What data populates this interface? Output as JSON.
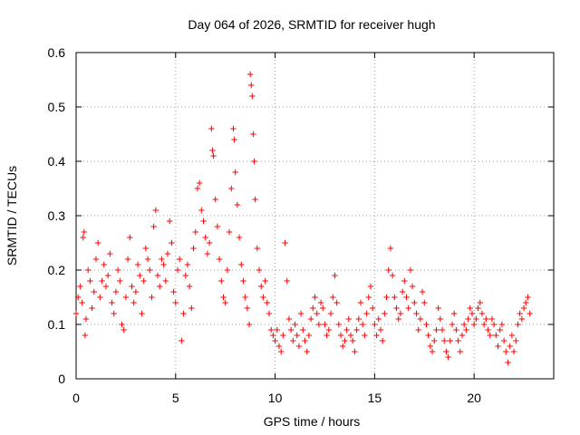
{
  "chart_data": {
    "type": "scatter",
    "title": "Day 064 of 2026, SRMTID for receiver hugh",
    "xlabel": "GPS time / hours",
    "ylabel": "SRMTID / TECUs",
    "xlim": [
      0,
      24
    ],
    "ylim": [
      0,
      0.6
    ],
    "x_ticks": [
      0,
      5,
      10,
      15,
      20
    ],
    "x_tick_labels": [
      "0",
      "5",
      "10",
      "15",
      "20"
    ],
    "y_ticks": [
      0,
      0.1,
      0.2,
      0.3,
      0.4,
      0.5,
      0.6
    ],
    "y_tick_labels": [
      "0",
      "0.1",
      "0.2",
      "0.3",
      "0.4",
      "0.5",
      "0.6"
    ],
    "grid": true,
    "marker": "plus",
    "series": [
      {
        "name": "SRMTID",
        "color": "#ff0000",
        "points": [
          [
            0.0,
            0.12
          ],
          [
            0.1,
            0.15
          ],
          [
            0.2,
            0.17
          ],
          [
            0.3,
            0.14
          ],
          [
            0.35,
            0.26
          ],
          [
            0.4,
            0.27
          ],
          [
            0.45,
            0.08
          ],
          [
            0.5,
            0.11
          ],
          [
            0.6,
            0.2
          ],
          [
            0.7,
            0.18
          ],
          [
            0.8,
            0.13
          ],
          [
            0.9,
            0.16
          ],
          [
            1.0,
            0.22
          ],
          [
            1.1,
            0.25
          ],
          [
            1.2,
            0.15
          ],
          [
            1.3,
            0.18
          ],
          [
            1.4,
            0.21
          ],
          [
            1.5,
            0.17
          ],
          [
            1.6,
            0.19
          ],
          [
            1.7,
            0.23
          ],
          [
            1.8,
            0.14
          ],
          [
            1.9,
            0.12
          ],
          [
            2.0,
            0.16
          ],
          [
            2.1,
            0.2
          ],
          [
            2.2,
            0.18
          ],
          [
            2.3,
            0.1
          ],
          [
            2.4,
            0.09
          ],
          [
            2.5,
            0.15
          ],
          [
            2.6,
            0.22
          ],
          [
            2.7,
            0.26
          ],
          [
            2.8,
            0.17
          ],
          [
            2.9,
            0.14
          ],
          [
            3.0,
            0.16
          ],
          [
            3.1,
            0.21
          ],
          [
            3.2,
            0.19
          ],
          [
            3.3,
            0.12
          ],
          [
            3.4,
            0.18
          ],
          [
            3.5,
            0.24
          ],
          [
            3.6,
            0.22
          ],
          [
            3.7,
            0.2
          ],
          [
            3.8,
            0.15
          ],
          [
            3.9,
            0.28
          ],
          [
            4.0,
            0.31
          ],
          [
            4.1,
            0.19
          ],
          [
            4.2,
            0.17
          ],
          [
            4.3,
            0.22
          ],
          [
            4.4,
            0.21
          ],
          [
            4.5,
            0.18
          ],
          [
            4.6,
            0.23
          ],
          [
            4.7,
            0.29
          ],
          [
            4.8,
            0.25
          ],
          [
            4.9,
            0.16
          ],
          [
            5.0,
            0.14
          ],
          [
            5.1,
            0.2
          ],
          [
            5.2,
            0.22
          ],
          [
            5.3,
            0.07
          ],
          [
            5.4,
            0.12
          ],
          [
            5.5,
            0.19
          ],
          [
            5.6,
            0.21
          ],
          [
            5.7,
            0.17
          ],
          [
            5.8,
            0.13
          ],
          [
            5.9,
            0.24
          ],
          [
            6.0,
            0.27
          ],
          [
            6.1,
            0.35
          ],
          [
            6.2,
            0.36
          ],
          [
            6.3,
            0.31
          ],
          [
            6.4,
            0.29
          ],
          [
            6.5,
            0.26
          ],
          [
            6.6,
            0.23
          ],
          [
            6.7,
            0.25
          ],
          [
            6.8,
            0.46
          ],
          [
            6.85,
            0.42
          ],
          [
            6.9,
            0.41
          ],
          [
            7.0,
            0.33
          ],
          [
            7.1,
            0.28
          ],
          [
            7.2,
            0.22
          ],
          [
            7.3,
            0.18
          ],
          [
            7.4,
            0.15
          ],
          [
            7.5,
            0.14
          ],
          [
            7.6,
            0.2
          ],
          [
            7.7,
            0.27
          ],
          [
            7.8,
            0.35
          ],
          [
            7.9,
            0.46
          ],
          [
            7.95,
            0.44
          ],
          [
            8.0,
            0.38
          ],
          [
            8.1,
            0.32
          ],
          [
            8.2,
            0.26
          ],
          [
            8.3,
            0.21
          ],
          [
            8.4,
            0.18
          ],
          [
            8.5,
            0.15
          ],
          [
            8.6,
            0.13
          ],
          [
            8.7,
            0.1
          ],
          [
            8.75,
            0.56
          ],
          [
            8.8,
            0.54
          ],
          [
            8.85,
            0.52
          ],
          [
            8.9,
            0.45
          ],
          [
            8.95,
            0.4
          ],
          [
            9.0,
            0.33
          ],
          [
            9.1,
            0.24
          ],
          [
            9.2,
            0.2
          ],
          [
            9.3,
            0.17
          ],
          [
            9.4,
            0.15
          ],
          [
            9.5,
            0.18
          ],
          [
            9.6,
            0.14
          ],
          [
            9.7,
            0.12
          ],
          [
            9.8,
            0.09
          ],
          [
            9.9,
            0.08
          ],
          [
            10.0,
            0.07
          ],
          [
            10.1,
            0.09
          ],
          [
            10.2,
            0.06
          ],
          [
            10.3,
            0.05
          ],
          [
            10.4,
            0.08
          ],
          [
            10.5,
            0.25
          ],
          [
            10.6,
            0.18
          ],
          [
            10.7,
            0.11
          ],
          [
            10.8,
            0.09
          ],
          [
            10.9,
            0.07
          ],
          [
            11.0,
            0.1
          ],
          [
            11.1,
            0.08
          ],
          [
            11.2,
            0.06
          ],
          [
            11.3,
            0.12
          ],
          [
            11.4,
            0.09
          ],
          [
            11.5,
            0.07
          ],
          [
            11.6,
            0.05
          ],
          [
            11.7,
            0.08
          ],
          [
            11.8,
            0.11
          ],
          [
            11.9,
            0.13
          ],
          [
            12.0,
            0.15
          ],
          [
            12.1,
            0.12
          ],
          [
            12.2,
            0.1
          ],
          [
            12.3,
            0.14
          ],
          [
            12.4,
            0.13
          ],
          [
            12.5,
            0.1
          ],
          [
            12.6,
            0.08
          ],
          [
            12.7,
            0.09
          ],
          [
            12.8,
            0.12
          ],
          [
            12.9,
            0.15
          ],
          [
            13.0,
            0.19
          ],
          [
            13.1,
            0.14
          ],
          [
            13.2,
            0.1
          ],
          [
            13.3,
            0.08
          ],
          [
            13.4,
            0.06
          ],
          [
            13.5,
            0.07
          ],
          [
            13.6,
            0.09
          ],
          [
            13.7,
            0.11
          ],
          [
            13.8,
            0.08
          ],
          [
            13.9,
            0.07
          ],
          [
            14.0,
            0.05
          ],
          [
            14.1,
            0.09
          ],
          [
            14.2,
            0.11
          ],
          [
            14.3,
            0.14
          ],
          [
            14.4,
            0.1
          ],
          [
            14.5,
            0.08
          ],
          [
            14.6,
            0.12
          ],
          [
            14.7,
            0.15
          ],
          [
            14.8,
            0.17
          ],
          [
            14.9,
            0.13
          ],
          [
            15.0,
            0.1
          ],
          [
            15.1,
            0.08
          ],
          [
            15.2,
            0.11
          ],
          [
            15.3,
            0.09
          ],
          [
            15.4,
            0.07
          ],
          [
            15.5,
            0.12
          ],
          [
            15.6,
            0.15
          ],
          [
            15.7,
            0.2
          ],
          [
            15.8,
            0.24
          ],
          [
            15.9,
            0.19
          ],
          [
            16.0,
            0.15
          ],
          [
            16.1,
            0.13
          ],
          [
            16.2,
            0.11
          ],
          [
            16.3,
            0.12
          ],
          [
            16.4,
            0.16
          ],
          [
            16.5,
            0.18
          ],
          [
            16.6,
            0.15
          ],
          [
            16.7,
            0.13
          ],
          [
            16.8,
            0.2
          ],
          [
            16.9,
            0.17
          ],
          [
            17.0,
            0.14
          ],
          [
            17.1,
            0.12
          ],
          [
            17.2,
            0.09
          ],
          [
            17.3,
            0.11
          ],
          [
            17.4,
            0.16
          ],
          [
            17.5,
            0.14
          ],
          [
            17.6,
            0.1
          ],
          [
            17.7,
            0.08
          ],
          [
            17.8,
            0.06
          ],
          [
            17.9,
            0.05
          ],
          [
            18.0,
            0.07
          ],
          [
            18.1,
            0.09
          ],
          [
            18.2,
            0.13
          ],
          [
            18.3,
            0.11
          ],
          [
            18.4,
            0.09
          ],
          [
            18.5,
            0.07
          ],
          [
            18.6,
            0.05
          ],
          [
            18.7,
            0.04
          ],
          [
            18.8,
            0.07
          ],
          [
            18.9,
            0.1
          ],
          [
            19.0,
            0.12
          ],
          [
            19.1,
            0.09
          ],
          [
            19.2,
            0.07
          ],
          [
            19.3,
            0.05
          ],
          [
            19.4,
            0.08
          ],
          [
            19.5,
            0.1
          ],
          [
            19.6,
            0.09
          ],
          [
            19.7,
            0.11
          ],
          [
            19.8,
            0.13
          ],
          [
            19.9,
            0.12
          ],
          [
            20.0,
            0.1
          ],
          [
            20.1,
            0.11
          ],
          [
            20.2,
            0.13
          ],
          [
            20.3,
            0.14
          ],
          [
            20.4,
            0.12
          ],
          [
            20.5,
            0.1
          ],
          [
            20.6,
            0.11
          ],
          [
            20.7,
            0.09
          ],
          [
            20.8,
            0.08
          ],
          [
            20.9,
            0.11
          ],
          [
            21.0,
            0.1
          ],
          [
            21.1,
            0.08
          ],
          [
            21.2,
            0.06
          ],
          [
            21.3,
            0.09
          ],
          [
            21.4,
            0.1
          ],
          [
            21.5,
            0.07
          ],
          [
            21.6,
            0.05
          ],
          [
            21.7,
            0.03
          ],
          [
            21.8,
            0.06
          ],
          [
            21.9,
            0.08
          ],
          [
            22.0,
            0.05
          ],
          [
            22.1,
            0.07
          ],
          [
            22.2,
            0.1
          ],
          [
            22.3,
            0.12
          ],
          [
            22.4,
            0.11
          ],
          [
            22.5,
            0.13
          ],
          [
            22.6,
            0.14
          ],
          [
            22.7,
            0.15
          ],
          [
            22.8,
            0.12
          ]
        ]
      }
    ]
  }
}
